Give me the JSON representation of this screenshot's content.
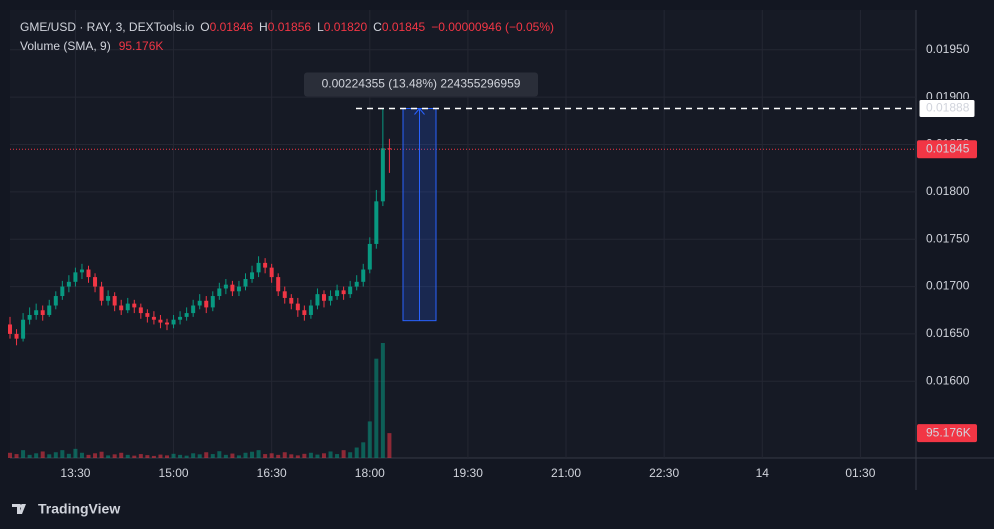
{
  "chart_data": {
    "type": "candlestick",
    "legend_text": {
      "symbol": "GME/USD · RAY, 3, DEXTools.io",
      "o": "O",
      "open": "0.01846",
      "h": "H",
      "high": "0.01856",
      "l": "L",
      "low": "0.01820",
      "c": "C",
      "close": "0.01845",
      "change": "−0.00000946 (−0.05%)",
      "volume": "Volume (SMA, 9)",
      "volume_value": "95.176K"
    },
    "x": [
      750,
      756,
      762,
      768,
      774,
      780,
      786,
      792,
      798,
      804,
      810,
      816,
      822,
      828,
      834,
      840,
      846,
      852,
      858,
      864,
      870,
      876,
      882,
      888,
      894,
      900,
      906,
      912,
      918,
      924,
      930,
      936,
      942,
      948,
      954,
      960,
      966,
      972,
      978,
      984,
      990,
      996,
      1002,
      1008,
      1014,
      1020,
      1026,
      1032,
      1038,
      1044,
      1050,
      1056,
      1062,
      1068,
      1074,
      1080,
      1086,
      1092,
      1098
    ],
    "open": [
      0.0166,
      0.0165,
      0.01645,
      0.01665,
      0.0167,
      0.01675,
      0.0167,
      0.0168,
      0.0169,
      0.017,
      0.01705,
      0.01715,
      0.01718,
      0.0171,
      0.017,
      0.01685,
      0.0169,
      0.0168,
      0.01675,
      0.01682,
      0.01678,
      0.01672,
      0.01668,
      0.01665,
      0.01662,
      0.0166,
      0.01665,
      0.01668,
      0.01672,
      0.0168,
      0.01685,
      0.01678,
      0.0169,
      0.01698,
      0.01702,
      0.01695,
      0.017,
      0.01708,
      0.01715,
      0.01725,
      0.0172,
      0.0171,
      0.01695,
      0.01688,
      0.01682,
      0.01675,
      0.0167,
      0.0168,
      0.01692,
      0.01685,
      0.0169,
      0.01696,
      0.01692,
      0.017,
      0.01705,
      0.01718,
      0.01745,
      0.0179,
      0.01846
    ],
    "high": [
      0.01668,
      0.01655,
      0.01672,
      0.01678,
      0.01682,
      0.0168,
      0.01686,
      0.01695,
      0.01706,
      0.01712,
      0.0172,
      0.01724,
      0.01722,
      0.01714,
      0.01705,
      0.01696,
      0.01694,
      0.01686,
      0.01688,
      0.01686,
      0.01682,
      0.01676,
      0.01674,
      0.0167,
      0.01666,
      0.0167,
      0.01674,
      0.01678,
      0.01686,
      0.01692,
      0.0169,
      0.01695,
      0.01704,
      0.01708,
      0.01706,
      0.01706,
      0.01714,
      0.01722,
      0.01732,
      0.0173,
      0.01724,
      0.01714,
      0.017,
      0.01692,
      0.01688,
      0.0168,
      0.01686,
      0.01698,
      0.01696,
      0.01696,
      0.01702,
      0.017,
      0.01706,
      0.01712,
      0.01724,
      0.01752,
      0.01802,
      0.01888,
      0.01856
    ],
    "low": [
      0.01645,
      0.01638,
      0.01642,
      0.0166,
      0.01665,
      0.01664,
      0.01668,
      0.01676,
      0.01686,
      0.01694,
      0.017,
      0.01708,
      0.01704,
      0.01694,
      0.0168,
      0.0168,
      0.01674,
      0.0167,
      0.01672,
      0.01672,
      0.01666,
      0.01662,
      0.0166,
      0.01656,
      0.01654,
      0.01656,
      0.0166,
      0.01664,
      0.01668,
      0.01676,
      0.01672,
      0.01674,
      0.01686,
      0.01692,
      0.0169,
      0.0169,
      0.01696,
      0.01704,
      0.0171,
      0.01714,
      0.01704,
      0.0169,
      0.01682,
      0.01676,
      0.01668,
      0.01664,
      0.01666,
      0.01676,
      0.01678,
      0.0168,
      0.01686,
      0.01686,
      0.01688,
      0.01696,
      0.017,
      0.01714,
      0.0174,
      0.01785,
      0.0182
    ],
    "close": [
      0.0165,
      0.01645,
      0.01665,
      0.0167,
      0.01675,
      0.0167,
      0.0168,
      0.0169,
      0.017,
      0.01705,
      0.01715,
      0.01718,
      0.0171,
      0.017,
      0.01685,
      0.0169,
      0.0168,
      0.01675,
      0.01682,
      0.01678,
      0.01672,
      0.01668,
      0.01665,
      0.01662,
      0.0166,
      0.01665,
      0.01668,
      0.01672,
      0.0168,
      0.01685,
      0.01678,
      0.0169,
      0.01698,
      0.01702,
      0.01695,
      0.017,
      0.01708,
      0.01715,
      0.01725,
      0.0172,
      0.0171,
      0.01695,
      0.01688,
      0.01682,
      0.01675,
      0.0167,
      0.0168,
      0.01692,
      0.01685,
      0.0169,
      0.01696,
      0.01692,
      0.017,
      0.01705,
      0.01718,
      0.01745,
      0.0179,
      0.01846,
      0.01845
    ],
    "volume": [
      20000,
      15000,
      30000,
      12000,
      18000,
      25000,
      14000,
      22000,
      30000,
      16000,
      35000,
      20000,
      12000,
      18000,
      24000,
      10000,
      14000,
      20000,
      12000,
      9000,
      15000,
      11000,
      8000,
      13000,
      10000,
      16000,
      12000,
      9000,
      18000,
      14000,
      22000,
      15000,
      26000,
      12000,
      17000,
      10000,
      20000,
      24000,
      30000,
      15000,
      18000,
      12000,
      22000,
      14000,
      10000,
      16000,
      20000,
      13000,
      18000,
      25000,
      15000,
      30000,
      22000,
      40000,
      60000,
      140000,
      380000,
      440000,
      95176
    ],
    "up_color": "#089981",
    "down_color": "#f23645",
    "xlim": [
      750,
      1581
    ],
    "xticks": [
      {
        "value": 810,
        "label": "13:30"
      },
      {
        "value": 900,
        "label": "15:00"
      },
      {
        "value": 990,
        "label": "16:30"
      },
      {
        "value": 1080,
        "label": "18:00"
      },
      {
        "value": 1170,
        "label": "19:30"
      },
      {
        "value": 1260,
        "label": "21:00"
      },
      {
        "value": 1350,
        "label": "22:30"
      },
      {
        "value": 1440,
        "label": "14"
      },
      {
        "value": 1530,
        "label": "01:30"
      }
    ],
    "ylim": [
      0.01519,
      0.01992
    ],
    "yticks": [
      {
        "value": 0.016,
        "label": "0.01600"
      },
      {
        "value": 0.0165,
        "label": "0.01650"
      },
      {
        "value": 0.017,
        "label": "0.01700"
      },
      {
        "value": 0.0175,
        "label": "0.01750"
      },
      {
        "value": 0.018,
        "label": "0.01800"
      },
      {
        "value": 0.0185,
        "label": "0.01850"
      },
      {
        "value": 0.019,
        "label": "0.01900"
      },
      {
        "value": 0.0195,
        "label": "0.01950"
      }
    ],
    "grid": true,
    "last_price": {
      "value": 0.01845,
      "label": "0.01845"
    },
    "measure_line": {
      "value": 0.01888,
      "label": "0.01888"
    },
    "volume_marker": {
      "value": 95176,
      "label": "95.176K"
    },
    "measurement": {
      "text": "0.00224355 (13.48%) 224355296959",
      "from": 0.01664,
      "to": 0.01888
    },
    "brand": "TradingView"
  }
}
